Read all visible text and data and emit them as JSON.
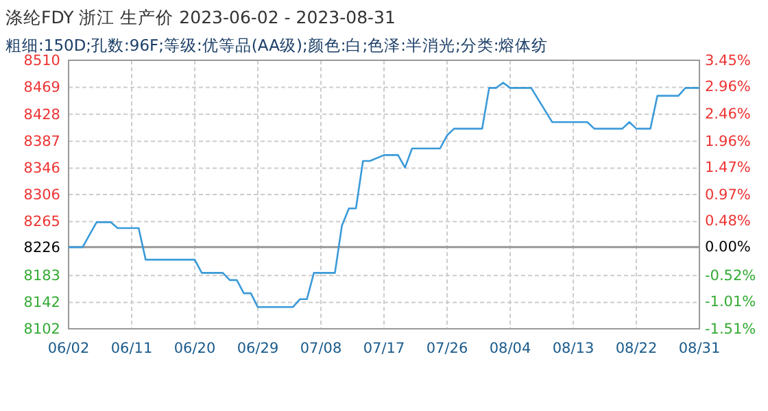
{
  "chart_data": {
    "type": "line",
    "title": "涤纶FDY 浙江 生产价 2023-06-02 - 2023-08-31",
    "subtitle": "粗细:150D;孔数:96F;等级:优等品(AA级);颜色:白;色泽:半消光;分类:熔体纺",
    "x": [
      "2023-06-02",
      "2023-06-04",
      "2023-06-06",
      "2023-06-08",
      "2023-06-09",
      "2023-06-12",
      "2023-06-13",
      "2023-06-20",
      "2023-06-21",
      "2023-06-24",
      "2023-06-25",
      "2023-06-26",
      "2023-06-27",
      "2023-06-28",
      "2023-06-29",
      "2023-07-04",
      "2023-07-05",
      "2023-07-06",
      "2023-07-07",
      "2023-07-10",
      "2023-07-11",
      "2023-07-12",
      "2023-07-13",
      "2023-07-14",
      "2023-07-15",
      "2023-07-17",
      "2023-07-19",
      "2023-07-20",
      "2023-07-21",
      "2023-07-25",
      "2023-07-26",
      "2023-07-27",
      "2023-07-31",
      "2023-08-01",
      "2023-08-02",
      "2023-08-03",
      "2023-08-04",
      "2023-08-07",
      "2023-08-10",
      "2023-08-15",
      "2023-08-16",
      "2023-08-20",
      "2023-08-21",
      "2023-08-22",
      "2023-08-24",
      "2023-08-25",
      "2023-08-28",
      "2023-08-29",
      "2023-08-31"
    ],
    "series": [
      {
        "color": "#3a9ad9",
        "values": [
          8226,
          8226,
          8264,
          8264,
          8255,
          8255,
          8207,
          8207,
          8187,
          8187,
          8176,
          8176,
          8156,
          8156,
          8135,
          8135,
          8147,
          8147,
          8187,
          8187,
          8259,
          8285,
          8285,
          8357,
          8357,
          8366,
          8366,
          8347,
          8376,
          8376,
          8396,
          8406,
          8406,
          8468,
          8468,
          8476,
          8468,
          8468,
          8416,
          8416,
          8406,
          8406,
          8416,
          8406,
          8406,
          8456,
          8456,
          8468,
          8468
        ]
      }
    ],
    "xlim": [
      "2023-06-02",
      "2023-08-31"
    ],
    "xticks": [
      {
        "value": "2023-06-02",
        "label": "06/02"
      },
      {
        "value": "2023-06-11",
        "label": "06/11"
      },
      {
        "value": "2023-06-20",
        "label": "06/20"
      },
      {
        "value": "2023-06-29",
        "label": "06/29"
      },
      {
        "value": "2023-07-08",
        "label": "07/08"
      },
      {
        "value": "2023-07-17",
        "label": "07/17"
      },
      {
        "value": "2023-07-26",
        "label": "07/26"
      },
      {
        "value": "2023-08-04",
        "label": "08/04"
      },
      {
        "value": "2023-08-13",
        "label": "08/13"
      },
      {
        "value": "2023-08-22",
        "label": "08/22"
      },
      {
        "value": "2023-08-31",
        "label": "08/31"
      }
    ],
    "ylim": [
      8102,
      8510
    ],
    "yticks": [
      8102,
      8142,
      8183,
      8226,
      8265,
      8306,
      8346,
      8387,
      8428,
      8469,
      8510
    ],
    "y2lim": [
      -1.51,
      3.45
    ],
    "y2ticks": [
      {
        "value": -1.51,
        "label": "-1.51%"
      },
      {
        "value": -1.01,
        "label": "-1.01%"
      },
      {
        "value": -0.52,
        "label": "-0.52%"
      },
      {
        "value": 0,
        "label": "0.00%"
      },
      {
        "value": 0.48,
        "label": "0.48%"
      },
      {
        "value": 0.97,
        "label": "0.97%"
      },
      {
        "value": 1.47,
        "label": "1.47%"
      },
      {
        "value": 1.96,
        "label": "1.96%"
      },
      {
        "value": 2.46,
        "label": "2.46%"
      },
      {
        "value": 2.96,
        "label": "2.96%"
      },
      {
        "value": 3.45,
        "label": "3.45%"
      }
    ],
    "ref_lines": [
      {
        "axis": "y",
        "value": 8226,
        "color": "#999999"
      }
    ],
    "grid": true,
    "line_style": "solid",
    "marker": "none"
  }
}
